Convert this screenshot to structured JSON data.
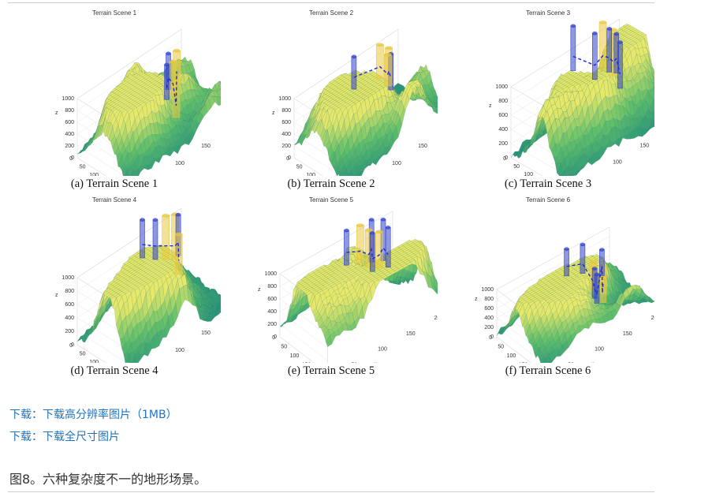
{
  "panels": [
    {
      "title": "Terrain Scene 1",
      "caption": "(a) Terrain Scene 1"
    },
    {
      "title": "Terrain Scene 2",
      "caption": "(b) Terrain Scene 2"
    },
    {
      "title": "Terrain Scene 3",
      "caption": "(c) Terrain Scene 3"
    },
    {
      "title": "Terrain Scene 4",
      "caption": "(d) Terrain Scene 4"
    },
    {
      "title": "Terrain Scene 5",
      "caption": "(e) Terrain Scene 5"
    },
    {
      "title": "Terrain Scene 6",
      "caption": "(f) Terrain Scene 6"
    }
  ],
  "axes": {
    "z_label": "z",
    "x_label": "x",
    "y_label": "y",
    "z_ticks": [
      "1000",
      "800",
      "600",
      "400",
      "200",
      "0"
    ],
    "x_ticks": [
      "0",
      "50",
      "100",
      "150",
      "200"
    ],
    "y_ticks": [
      "0",
      "50",
      "100",
      "150",
      "200"
    ]
  },
  "colors": {
    "terrain_low": "#1f8f7a",
    "terrain_mid": "#5fbf6a",
    "terrain_high": "#e6e86a",
    "threat_blue": "#3344cc",
    "threat_yellow": "#e8c840",
    "path_blue": "#1a2bd6",
    "link": "#1f73c2"
  },
  "links": {
    "download_hi_res": "下载：下载高分辨率图片（1MB）",
    "download_full": "下载：下载全尺寸图片"
  },
  "figure_caption": "图8。六种复杂度不一的地形场景。"
}
